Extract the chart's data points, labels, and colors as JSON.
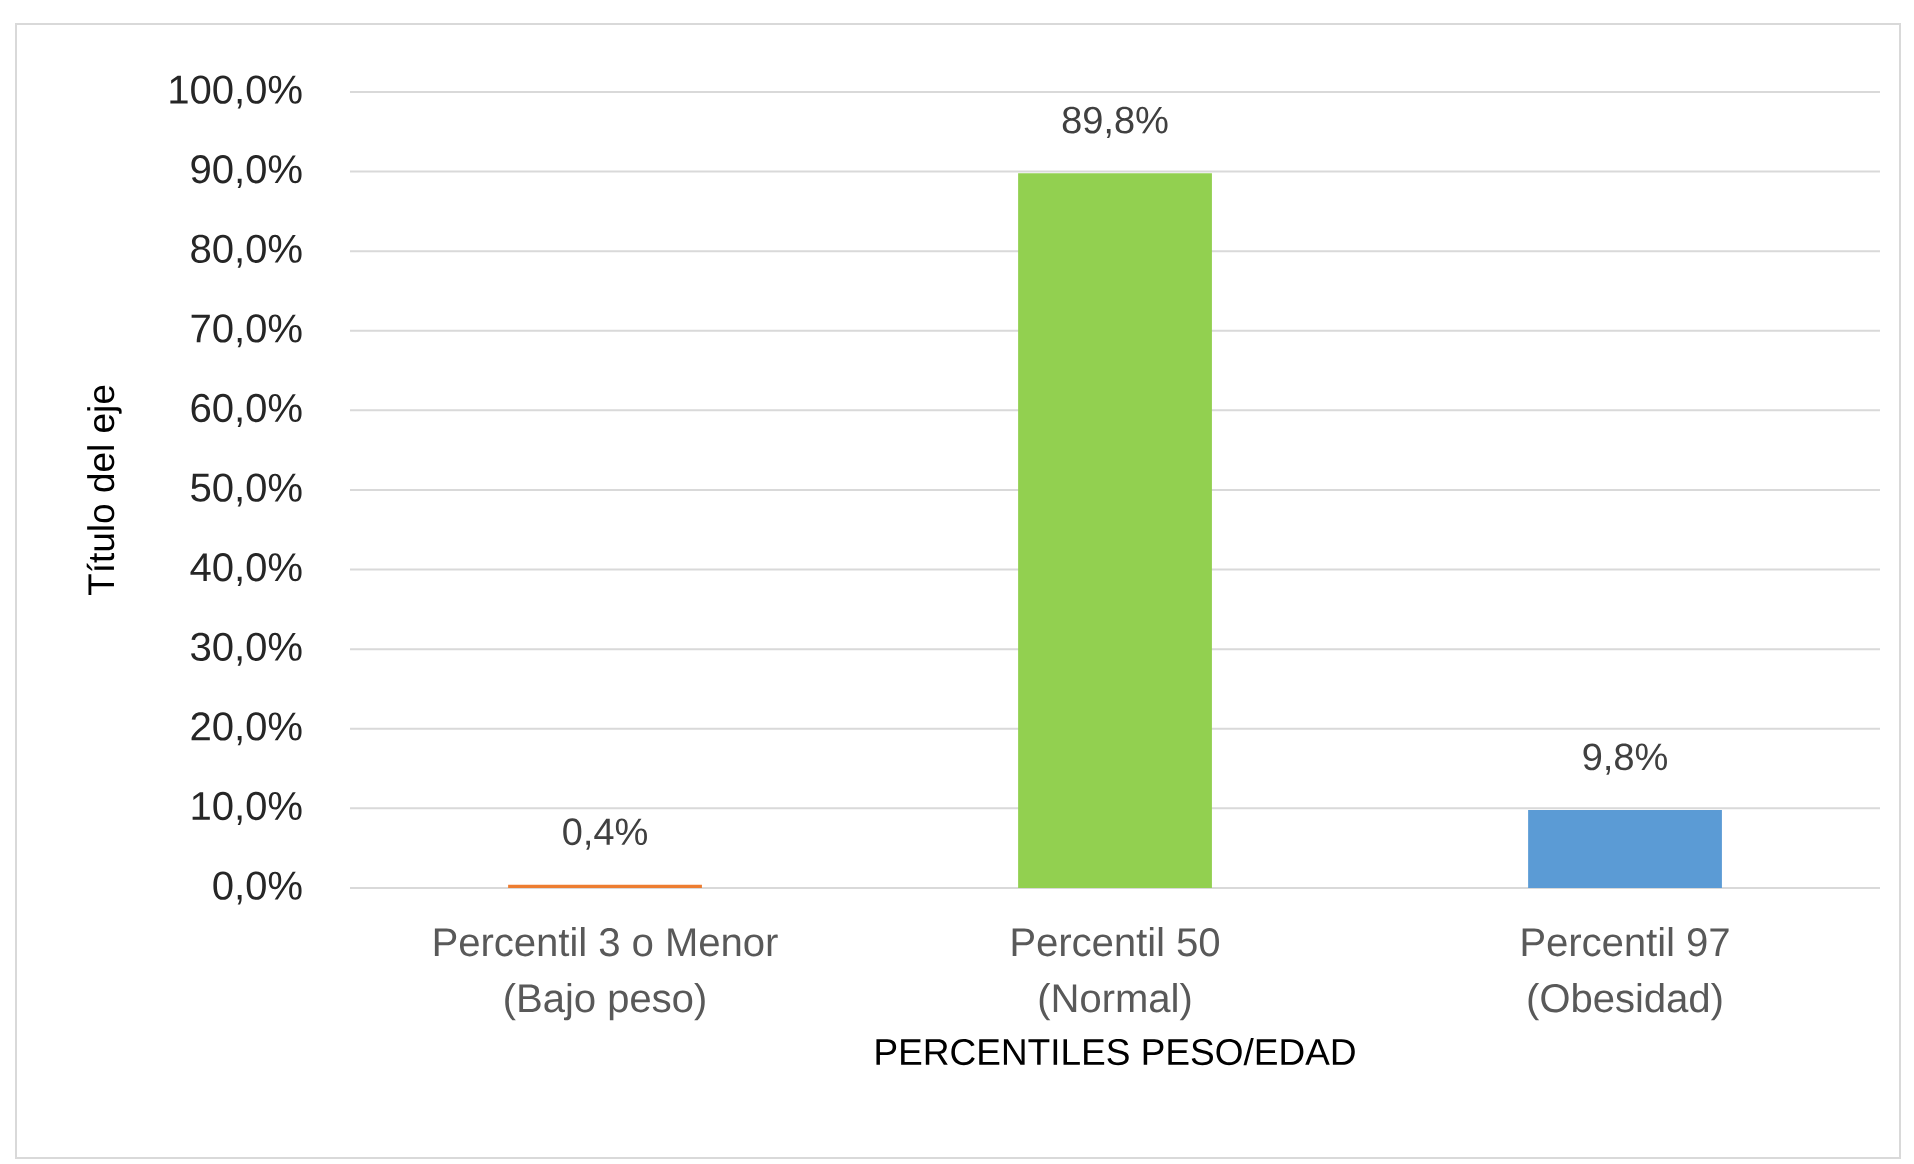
{
  "chart_data": {
    "type": "bar",
    "xlabel": "PERCENTILES PESO/EDAD",
    "ylabel": "Título del eje",
    "categories": [
      "Percentil 3 o Menor (Bajo peso)",
      "Percentil 50 (Normal)",
      "Percentil 97 (Obesidad)"
    ],
    "values": [
      0.4,
      89.8,
      9.8
    ],
    "colors": [
      "#ed7d31",
      "#92d050",
      "#5b9bd5"
    ],
    "value_labels": [
      "0,4%",
      "89,8%",
      "9,8%"
    ],
    "ylim": [
      0,
      100
    ],
    "yticks": [
      {
        "value": 0,
        "label": "0,0%"
      },
      {
        "value": 10,
        "label": "10,0%"
      },
      {
        "value": 20,
        "label": "20,0%"
      },
      {
        "value": 30,
        "label": "30,0%"
      },
      {
        "value": 40,
        "label": "40,0%"
      },
      {
        "value": 50,
        "label": "50,0%"
      },
      {
        "value": 60,
        "label": "60,0%"
      },
      {
        "value": 70,
        "label": "70,0%"
      },
      {
        "value": 80,
        "label": "80,0%"
      },
      {
        "value": 90,
        "label": "90,0%"
      },
      {
        "value": 100,
        "label": "100,0%"
      }
    ],
    "grid": "y"
  }
}
